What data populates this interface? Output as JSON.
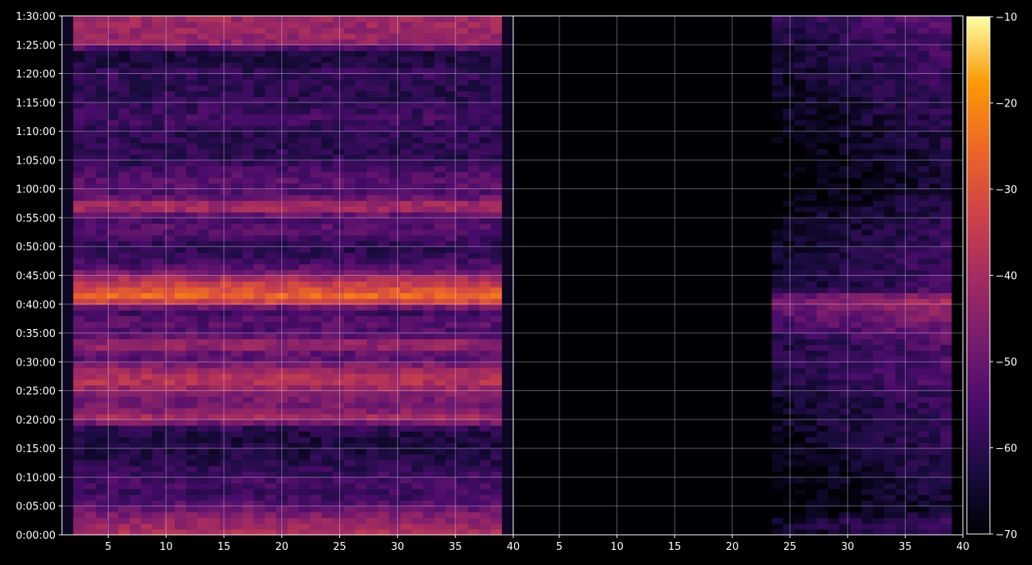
{
  "chart_data": {
    "type": "heatmap",
    "title": "",
    "xlabel": "",
    "ylabel": "",
    "background": "#000000",
    "colormap": "inferno",
    "grid": true,
    "panels": [
      {
        "name": "left",
        "xlim": [
          1,
          40
        ],
        "xticks": [
          "5",
          "10",
          "15",
          "20",
          "25",
          "30",
          "35",
          "40"
        ],
        "columns_with_signal": [
          2,
          39
        ],
        "gap_fill_db": -66,
        "row_profile_db": [
          [
            0,
            -38
          ],
          [
            3,
            -45
          ],
          [
            5,
            -52
          ],
          [
            7,
            -58
          ],
          [
            9,
            -55
          ],
          [
            12,
            -60
          ],
          [
            14,
            -62
          ],
          [
            17,
            -63
          ],
          [
            19,
            -58
          ],
          [
            20,
            -38
          ],
          [
            22,
            -48
          ],
          [
            24,
            -48
          ],
          [
            27,
            -36
          ],
          [
            29,
            -44
          ],
          [
            31,
            -55
          ],
          [
            33,
            -40
          ],
          [
            35,
            -55
          ],
          [
            37,
            -52
          ],
          [
            39,
            -58
          ],
          [
            41,
            -24
          ],
          [
            44,
            -36
          ],
          [
            46,
            -52
          ],
          [
            48,
            -58
          ],
          [
            50,
            -60
          ],
          [
            53,
            -52
          ],
          [
            55,
            -56
          ],
          [
            57,
            -36
          ],
          [
            59,
            -55
          ],
          [
            61,
            -52
          ],
          [
            63,
            -55
          ],
          [
            65,
            -60
          ],
          [
            68,
            -60
          ],
          [
            70,
            -60
          ],
          [
            72,
            -56
          ],
          [
            74,
            -58
          ],
          [
            76,
            -60
          ],
          [
            78,
            -60
          ],
          [
            80,
            -58
          ],
          [
            82,
            -62
          ],
          [
            84,
            -62
          ],
          [
            85,
            -44
          ],
          [
            87,
            -42
          ],
          [
            89,
            -42
          ],
          [
            90,
            -40
          ]
        ]
      },
      {
        "name": "right",
        "xlim": [
          1,
          40
        ],
        "xticks": [
          "5",
          "10",
          "15",
          "20",
          "25",
          "30",
          "35",
          "40"
        ],
        "columns_with_signal": [
          24,
          39
        ],
        "gap_fill_db": -72,
        "row_profile_db": [
          [
            0,
            -60
          ],
          [
            2,
            -56
          ],
          [
            4,
            -64
          ],
          [
            20,
            -58
          ],
          [
            24,
            -58
          ],
          [
            27,
            -54
          ],
          [
            33,
            -54
          ],
          [
            41,
            -40
          ],
          [
            43,
            -58
          ],
          [
            44,
            -56
          ],
          [
            56,
            -60
          ],
          [
            61,
            -64
          ],
          [
            85,
            -56
          ],
          [
            87,
            -54
          ],
          [
            89,
            -52
          ],
          [
            90,
            -52
          ]
        ]
      }
    ],
    "y_range_minutes": [
      0,
      90
    ],
    "yticks": [
      "0:00:00",
      "0:05:00",
      "0:10:00",
      "0:15:00",
      "0:20:00",
      "0:25:00",
      "0:30:00",
      "0:35:00",
      "0:40:00",
      "0:45:00",
      "0:50:00",
      "0:55:00",
      "1:00:00",
      "1:05:00",
      "1:10:00",
      "1:15:00",
      "1:20:00",
      "1:25:00",
      "1:30:00"
    ],
    "colorbar": {
      "range": [
        -70,
        -10
      ],
      "ticks": [
        "−10",
        "−20",
        "−30",
        "−40",
        "−50",
        "−60",
        "−70"
      ]
    }
  }
}
